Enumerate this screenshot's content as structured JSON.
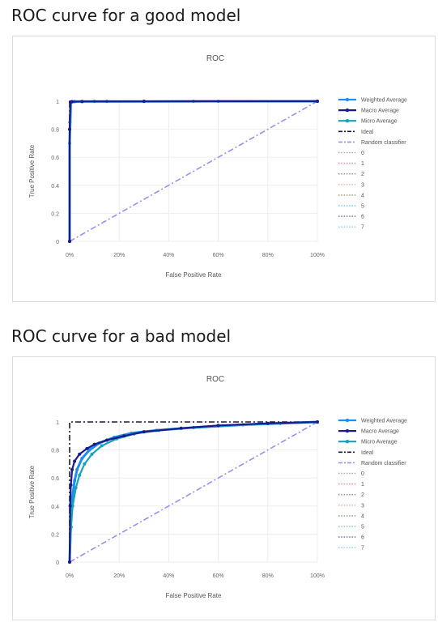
{
  "sections": [
    {
      "heading": "ROC curve for a good model"
    },
    {
      "heading": "ROC curve for a bad model"
    }
  ],
  "colors": {
    "weighted": "#1f8ef1",
    "macro": "#1a1a8a",
    "micro": "#17a2b8",
    "ideal": "#1a1a3a",
    "random": "#9b8ff0",
    "class0": "#aaaaaa",
    "class1": "#f48fb1",
    "class2": "#999999",
    "class3": "#f5b7a3",
    "class4": "#a6a08a",
    "class5": "#81c9f2",
    "class6": "#8a6fd1",
    "class7": "#9ad6f5"
  },
  "chart_data": [
    {
      "type": "line",
      "title": "ROC",
      "xlabel": "False Positive Rate",
      "ylabel": "True Positive Rate",
      "xlim": [
        0,
        1
      ],
      "ylim": [
        0,
        1
      ],
      "xticks": [
        0,
        0.2,
        0.4,
        0.6,
        0.8,
        1.0
      ],
      "xtick_labels": [
        "0%",
        "20%",
        "40%",
        "60%",
        "80%",
        "100%"
      ],
      "yticks": [
        0,
        0.2,
        0.4,
        0.6,
        0.8,
        1
      ],
      "ytick_labels": [
        "0",
        "0.2",
        "0.4",
        "0.6",
        "0.8",
        "1"
      ],
      "legend_position": "right",
      "legend": [
        "Weighted Average",
        "Macro Average",
        "Micro Average",
        "Ideal",
        "Random classifier",
        "0",
        "1",
        "2",
        "3",
        "4",
        "5",
        "6",
        "7"
      ],
      "series": [
        {
          "name": "Weighted Average",
          "style": "solid-markers",
          "color_key": "weighted",
          "x": [
            0,
            0,
            0.005,
            0.01,
            0.02,
            0.05,
            0.15,
            0.3,
            0.6,
            1.0
          ],
          "y": [
            0,
            0.7,
            0.99,
            0.995,
            0.997,
            0.998,
            0.999,
            0.999,
            1.0,
            1.0
          ]
        },
        {
          "name": "Macro Average",
          "style": "solid-markers",
          "color_key": "macro",
          "x": [
            0,
            0,
            0.003,
            0.01,
            0.05,
            0.3,
            1.0
          ],
          "y": [
            0,
            0.8,
            0.995,
            0.997,
            0.998,
            0.999,
            1.0
          ]
        },
        {
          "name": "Micro Average",
          "style": "solid-markers",
          "color_key": "micro",
          "x": [
            0,
            0.001,
            0.005,
            0.02,
            0.1,
            0.5,
            1.0
          ],
          "y": [
            0,
            0.85,
            0.995,
            0.998,
            0.999,
            1.0,
            1.0
          ]
        },
        {
          "name": "Ideal",
          "style": "dashdot",
          "color_key": "ideal",
          "x": [
            0,
            0,
            1
          ],
          "y": [
            0,
            1,
            1
          ]
        },
        {
          "name": "Random classifier",
          "style": "dashdot",
          "color_key": "random",
          "x": [
            0,
            1
          ],
          "y": [
            0,
            1
          ]
        }
      ]
    },
    {
      "type": "line",
      "title": "ROC",
      "xlabel": "False Positive Rate",
      "ylabel": "True Positive Rate",
      "xlim": [
        0,
        1
      ],
      "ylim": [
        0,
        1
      ],
      "xticks": [
        0,
        0.2,
        0.4,
        0.6,
        0.8,
        1.0
      ],
      "xtick_labels": [
        "0%",
        "20%",
        "40%",
        "60%",
        "80%",
        "100%"
      ],
      "yticks": [
        0,
        0.2,
        0.4,
        0.6,
        0.8,
        1
      ],
      "ytick_labels": [
        "0",
        "0.2",
        "0.4",
        "0.6",
        "0.8",
        "1"
      ],
      "legend_position": "right",
      "legend": [
        "Weighted Average",
        "Macro Average",
        "Micro Average",
        "Ideal",
        "Random classifier",
        "0",
        "1",
        "2",
        "3",
        "4",
        "5",
        "6",
        "7"
      ],
      "series": [
        {
          "name": "Weighted Average",
          "style": "solid-markers",
          "color_key": "weighted",
          "x": [
            0,
            0.005,
            0.01,
            0.02,
            0.03,
            0.05,
            0.08,
            0.12,
            0.18,
            0.25,
            0.35,
            0.5,
            0.7,
            0.85,
            1.0
          ],
          "y": [
            0,
            0.3,
            0.45,
            0.58,
            0.66,
            0.74,
            0.8,
            0.85,
            0.89,
            0.92,
            0.94,
            0.96,
            0.98,
            0.99,
            1.0
          ]
        },
        {
          "name": "Macro Average",
          "style": "solid-markers",
          "color_key": "macro",
          "x": [
            0,
            0.002,
            0.005,
            0.01,
            0.02,
            0.04,
            0.07,
            0.1,
            0.15,
            0.22,
            0.3,
            0.45,
            0.6,
            0.8,
            1.0
          ],
          "y": [
            0,
            0.4,
            0.55,
            0.66,
            0.72,
            0.77,
            0.81,
            0.84,
            0.87,
            0.9,
            0.93,
            0.955,
            0.975,
            0.99,
            1.0
          ]
        },
        {
          "name": "Micro Average",
          "style": "solid-markers",
          "color_key": "micro",
          "x": [
            0,
            0.006,
            0.012,
            0.025,
            0.04,
            0.06,
            0.09,
            0.13,
            0.19,
            0.26,
            0.36,
            0.5,
            0.7,
            0.85,
            1.0
          ],
          "y": [
            0,
            0.25,
            0.4,
            0.53,
            0.62,
            0.7,
            0.77,
            0.83,
            0.88,
            0.915,
            0.94,
            0.96,
            0.98,
            0.99,
            1.0
          ]
        },
        {
          "name": "Ideal",
          "style": "dashdot",
          "color_key": "ideal",
          "x": [
            0,
            0,
            1
          ],
          "y": [
            0,
            1,
            1
          ]
        },
        {
          "name": "Random classifier",
          "style": "dashdot",
          "color_key": "random",
          "x": [
            0,
            1
          ],
          "y": [
            0,
            1
          ]
        }
      ]
    }
  ]
}
